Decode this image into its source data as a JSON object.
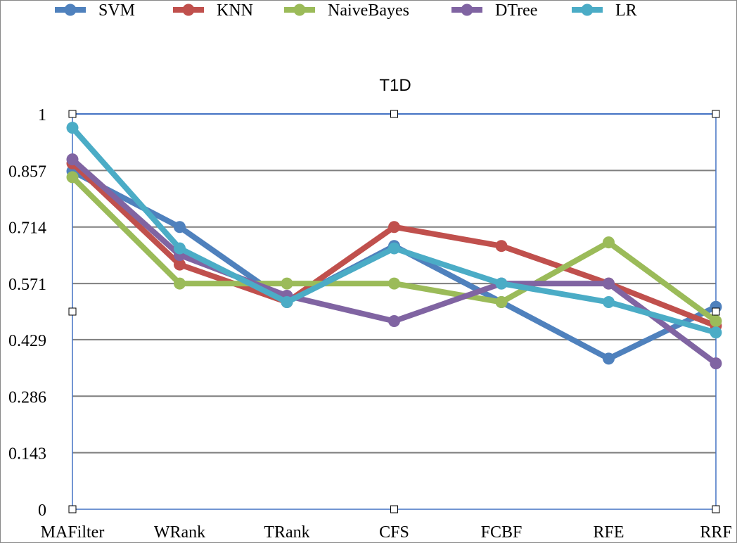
{
  "chart_data": {
    "type": "line",
    "title": "T1D",
    "xlabel": "",
    "ylabel": "",
    "categories": [
      "MAFilter",
      "WRank",
      "TRank",
      "CFS",
      "FCBF",
      "RFE",
      "RRF"
    ],
    "y_ticks": [
      "0",
      "0.143",
      "0.286",
      "0.429",
      "0.571",
      "0.714",
      "0.857",
      "1"
    ],
    "ylim": [
      0,
      1
    ],
    "grid": true,
    "legend_position": "top",
    "series": [
      {
        "name": "SVM",
        "color": "#4F81BD",
        "values": [
          0.855,
          0.714,
          0.524,
          0.666,
          0.524,
          0.381,
          0.512
        ]
      },
      {
        "name": "KNN",
        "color": "#C0504D",
        "values": [
          0.875,
          0.619,
          0.524,
          0.714,
          0.666,
          0.571,
          0.464
        ]
      },
      {
        "name": "NaiveBayes",
        "color": "#9BBB59",
        "values": [
          0.84,
          0.571,
          0.571,
          0.571,
          0.524,
          0.675,
          0.476
        ]
      },
      {
        "name": "DTree",
        "color": "#8064A2",
        "values": [
          0.885,
          0.643,
          0.54,
          0.476,
          0.571,
          0.571,
          0.369
        ]
      },
      {
        "name": "LR",
        "color": "#4BACC6",
        "values": [
          0.965,
          0.66,
          0.524,
          0.66,
          0.571,
          0.524,
          0.447
        ]
      }
    ]
  }
}
